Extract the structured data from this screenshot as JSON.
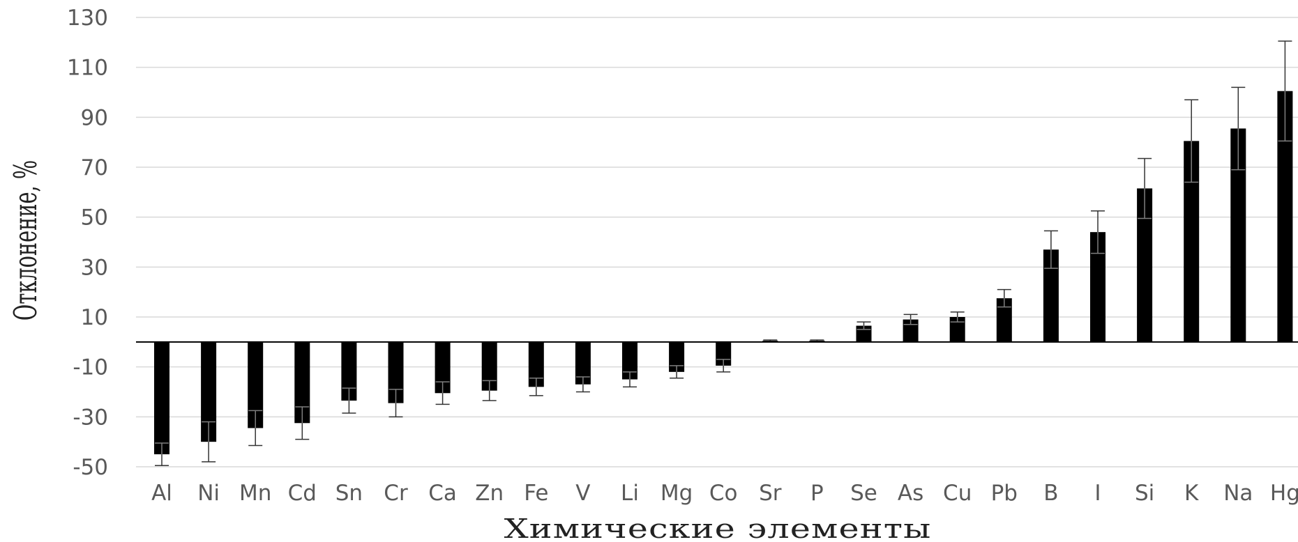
{
  "chart_data": {
    "type": "bar",
    "title": "",
    "xlabel": "Химические элементы",
    "ylabel": "Отклонение, %",
    "ylim": [
      -50,
      130
    ],
    "yticks": [
      130,
      110,
      90,
      70,
      50,
      30,
      10,
      -10,
      -30,
      -50
    ],
    "grid": true,
    "legend": "none",
    "categories": [
      "Al",
      "Ni",
      "Mn",
      "Cd",
      "Sn",
      "Cr",
      "Ca",
      "Zn",
      "Fe",
      "V",
      "Li",
      "Mg",
      "Co",
      "Sr",
      "P",
      "Se",
      "As",
      "Cu",
      "Pb",
      "B",
      "I",
      "Si",
      "K",
      "Na",
      "Hg"
    ],
    "values": [
      -45,
      -40,
      -34.5,
      -32.5,
      -23.5,
      -24.5,
      -20.5,
      -19.5,
      -18,
      -17,
      -15,
      -12,
      -9.5,
      0.5,
      0.5,
      6.5,
      9,
      10,
      17.5,
      37,
      44,
      61.5,
      80.5,
      85.5,
      100.5
    ],
    "error": [
      4.5,
      8,
      7,
      6.5,
      5,
      5.5,
      4.5,
      4,
      3.5,
      3,
      3,
      2.5,
      2.5,
      0.3,
      0.3,
      1.5,
      2,
      2,
      3.5,
      7.5,
      8.5,
      12,
      16.5,
      16.5,
      20
    ],
    "colors": {
      "bar": "#000000",
      "grid": "#d9d9d9",
      "axis": "#000000"
    }
  }
}
